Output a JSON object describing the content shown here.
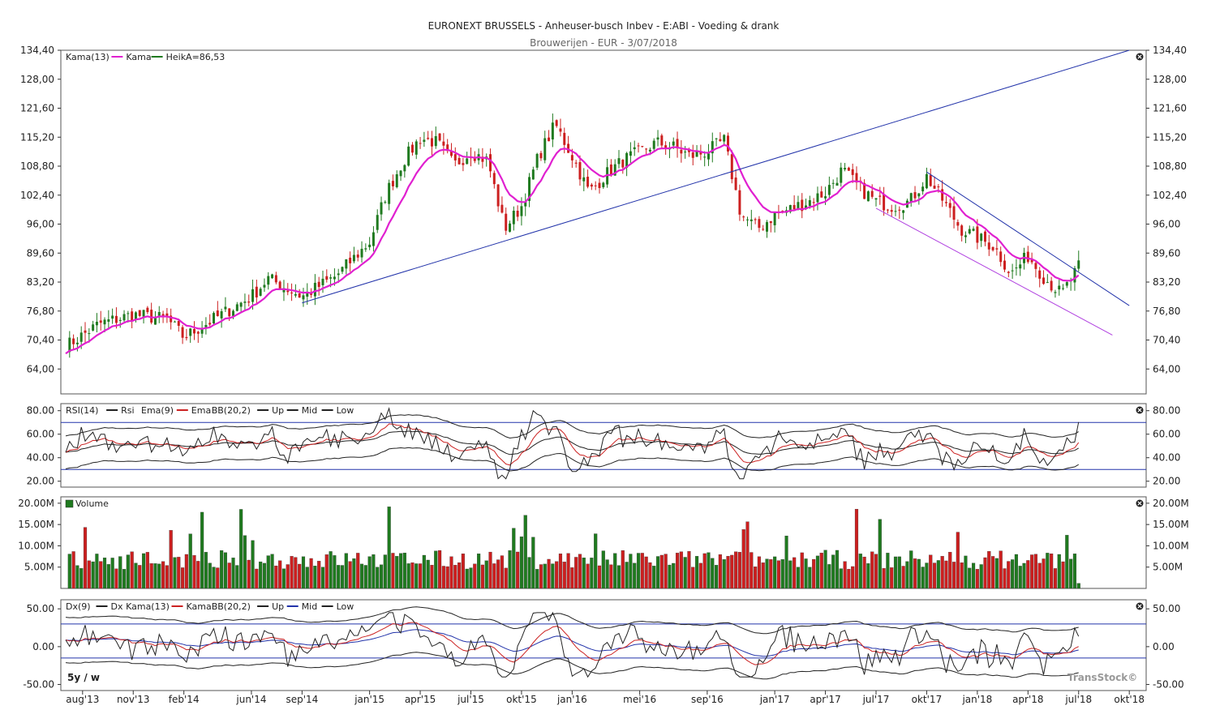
{
  "title": "EURONEXT BRUSSELS - Anheuser-busch Inbev - E:ABI - Voeding & drank",
  "subtitle": "Brouwerijen - EUR - 3/07/2018",
  "watermark": "TransStock©",
  "period_label": "5y / w",
  "colors": {
    "up": "#1f7a1f",
    "down": "#cc1f1f",
    "kama": "#e020d0",
    "trend": "#2233aa",
    "channel": "#b040e0",
    "ema": "#cc2222",
    "mid": "#2233aa"
  },
  "chart_data": [
    {
      "type": "candlestick",
      "name": "price",
      "legend": [
        {
          "name": "Kama(13)",
          "color": ""
        },
        {
          "name": "Kama",
          "color": "#e020d0"
        },
        {
          "name": "HeikA=86,53",
          "color": "#1f7a1f"
        }
      ],
      "yticks": [
        "134,40",
        "128,00",
        "121,60",
        "115,20",
        "108,80",
        "102,40",
        "96,00",
        "89,60",
        "83,20",
        "76,80",
        "70,40",
        "64,00"
      ],
      "ytick_values": [
        134.4,
        128.0,
        121.6,
        115.2,
        108.8,
        102.4,
        96.0,
        89.6,
        83.2,
        76.8,
        70.4,
        64.0
      ],
      "ylim": [
        58.5,
        134.4
      ],
      "xticks": [
        "aug'13",
        "nov'13",
        "feb'14",
        "jun'14",
        "sep'14",
        "jan'15",
        "apr'15",
        "jul'15",
        "okt'15",
        "jan'16",
        "mei'16",
        "sep'16",
        "jan'17",
        "apr'17",
        "jul'17",
        "okt'17",
        "jan'18",
        "apr'18",
        "jul'18",
        "okt'18"
      ],
      "x_range": [
        "2013-07",
        "2018-11"
      ],
      "anchors": [
        [
          "2013-07",
          69.0
        ],
        [
          "2013-09",
          74.0
        ],
        [
          "2013-11",
          76.0
        ],
        [
          "2014-01",
          75.0
        ],
        [
          "2014-02",
          71.0
        ],
        [
          "2014-04",
          75.5
        ],
        [
          "2014-06",
          80.0
        ],
        [
          "2014-07",
          84.0
        ],
        [
          "2014-09",
          80.0
        ],
        [
          "2014-11",
          84.5
        ],
        [
          "2015-01",
          92.0
        ],
        [
          "2015-02",
          103.0
        ],
        [
          "2015-03",
          110.0
        ],
        [
          "2015-04",
          115.0
        ],
        [
          "2015-05",
          114.0
        ],
        [
          "2015-06",
          109.0
        ],
        [
          "2015-07",
          112.0
        ],
        [
          "2015-08",
          110.0
        ],
        [
          "2015-09",
          95.0
        ],
        [
          "2015-10",
          100.0
        ],
        [
          "2015-11",
          111.0
        ],
        [
          "2015-12",
          118.0
        ],
        [
          "2016-01",
          111.0
        ],
        [
          "2016-02",
          103.0
        ],
        [
          "2016-03",
          107.0
        ],
        [
          "2016-04",
          110.0
        ],
        [
          "2016-05",
          112.0
        ],
        [
          "2016-06",
          114.0
        ],
        [
          "2016-07",
          113.0
        ],
        [
          "2016-08",
          111.0
        ],
        [
          "2016-09",
          112.0
        ],
        [
          "2016-10",
          114.5
        ],
        [
          "2016-11",
          98.0
        ],
        [
          "2016-12",
          95.0
        ],
        [
          "2017-01",
          98.0
        ],
        [
          "2017-02",
          99.5
        ],
        [
          "2017-03",
          101.0
        ],
        [
          "2017-04",
          103.0
        ],
        [
          "2017-05",
          108.0
        ],
        [
          "2017-06",
          104.0
        ],
        [
          "2017-07",
          101.0
        ],
        [
          "2017-08",
          100.0
        ],
        [
          "2017-09",
          101.0
        ],
        [
          "2017-10",
          106.5
        ],
        [
          "2017-11",
          101.0
        ],
        [
          "2017-12",
          95.0
        ],
        [
          "2018-01",
          93.0
        ],
        [
          "2018-02",
          91.0
        ],
        [
          "2018-03",
          85.0
        ],
        [
          "2018-04",
          89.0
        ],
        [
          "2018-05",
          84.0
        ],
        [
          "2018-06",
          80.5
        ],
        [
          "2018-07",
          86.5
        ]
      ],
      "trendlines": [
        {
          "from": [
            "2014-09",
            78.6
          ],
          "to": [
            "2018-10",
            134.4
          ],
          "color": "#2233aa"
        },
        {
          "from": [
            "2017-10",
            107.5
          ],
          "to": [
            "2018-10",
            78.0
          ],
          "color": "#2233aa"
        },
        {
          "from": [
            "2017-07",
            99.5
          ],
          "to": [
            "2018-09",
            71.5
          ],
          "color": "#b040e0"
        }
      ]
    },
    {
      "type": "line",
      "name": "rsi",
      "legend": [
        {
          "name": "RSI(14)",
          "color": ""
        },
        {
          "name": "Rsi",
          "color": "#222222"
        },
        {
          "name": "Ema(9)",
          "color": ""
        },
        {
          "name": "Ema",
          "color": "#cc2222"
        },
        {
          "name": "BB(20,2)",
          "color": ""
        },
        {
          "name": "Up",
          "color": "#222222"
        },
        {
          "name": "Mid",
          "color": "#222222"
        },
        {
          "name": "Low",
          "color": "#222222"
        }
      ],
      "yticks": [
        "80.00",
        "60.00",
        "40.00",
        "20.00"
      ],
      "ytick_values": [
        80,
        60,
        40,
        20
      ],
      "ylim": [
        15,
        86
      ],
      "reference_levels": [
        70,
        30
      ]
    },
    {
      "type": "bar",
      "name": "volume",
      "legend": [
        {
          "name": "Volume",
          "color": ""
        }
      ],
      "yticks": [
        "20.00M",
        "15.00M",
        "10.00M",
        "5.00M"
      ],
      "ytick_values": [
        20,
        15,
        10,
        5
      ],
      "ylim": [
        0,
        21.5
      ]
    },
    {
      "type": "line",
      "name": "dx",
      "legend": [
        {
          "name": "Dx(9)",
          "color": ""
        },
        {
          "name": "Dx",
          "color": "#222222"
        },
        {
          "name": "Kama(13)",
          "color": ""
        },
        {
          "name": "Kama",
          "color": "#cc2222"
        },
        {
          "name": "BB(20,2)",
          "color": ""
        },
        {
          "name": "Up",
          "color": "#222222"
        },
        {
          "name": "Mid",
          "color": "#2233aa"
        },
        {
          "name": "Low",
          "color": "#222222"
        }
      ],
      "yticks": [
        "50.00",
        "0.00",
        "-50.00"
      ],
      "ytick_values": [
        50,
        0,
        -50
      ],
      "ylim": [
        -58,
        62
      ],
      "reference_levels": [
        30,
        -15
      ]
    }
  ]
}
